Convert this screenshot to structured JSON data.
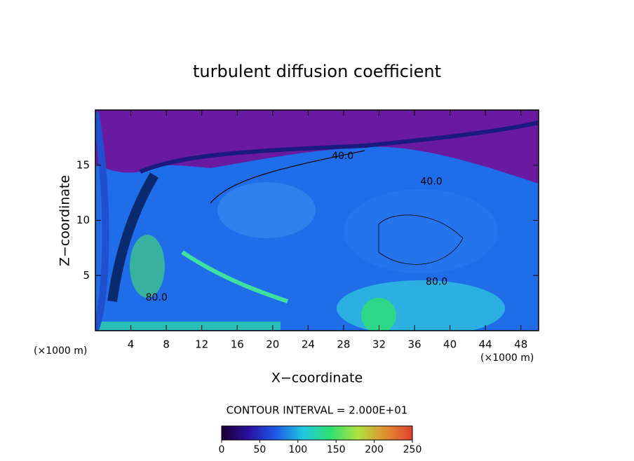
{
  "chart_data": {
    "type": "contour",
    "title": "turbulent diffusion coefficient",
    "x_label": "X−coordinate",
    "y_label": "Z−coordinate",
    "x_unit_left": "(×1000 m)",
    "x_unit_right": "(×1000 m)",
    "xlim": [
      0,
      50
    ],
    "xticks": [
      4,
      8,
      12,
      16,
      20,
      24,
      28,
      32,
      36,
      40,
      44,
      48
    ],
    "ylim": [
      0,
      20
    ],
    "yticks": [
      5,
      10,
      15
    ],
    "contour_interval_label": "CONTOUR INTERVAL = 2.000E+01",
    "colorbar": {
      "lim": [
        0,
        250
      ],
      "ticks": [
        0,
        50,
        100,
        150,
        200,
        250
      ],
      "colors": [
        "#1a0030",
        "#2a10a0",
        "#1e5ae6",
        "#20c8e0",
        "#30e070",
        "#b0e040",
        "#e09030",
        "#e04030"
      ]
    },
    "annotations": [
      {
        "text": "40.0",
        "x": 27.9,
        "y": 15.8
      },
      {
        "text": "40.0",
        "x": 37.9,
        "y": 13.5
      },
      {
        "text": "80.0",
        "x": 38.5,
        "y": 4.4
      },
      {
        "text": "80.0",
        "x": 6.9,
        "y": 3.0
      }
    ]
  }
}
